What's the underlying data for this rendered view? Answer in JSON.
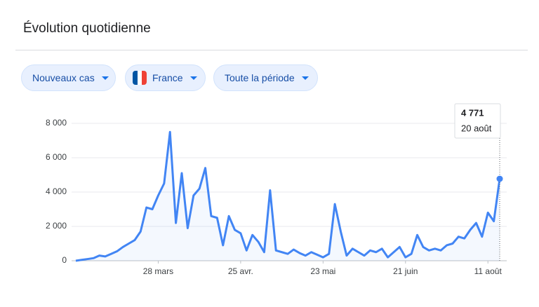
{
  "header": {
    "title": "Évolution quotidienne"
  },
  "controls": [
    "Nouveaux cas",
    "France",
    "Toute la période"
  ],
  "chart_data": {
    "type": "line",
    "categories": [
      null,
      null,
      null,
      null,
      null,
      null,
      null,
      null,
      null,
      null,
      null,
      null,
      null,
      null,
      "28 mars",
      null,
      null,
      null,
      null,
      null,
      null,
      null,
      null,
      null,
      null,
      null,
      null,
      null,
      "25 avr.",
      null,
      null,
      null,
      null,
      null,
      null,
      null,
      null,
      null,
      null,
      null,
      null,
      null,
      "23 mai",
      null,
      null,
      null,
      null,
      null,
      null,
      null,
      null,
      null,
      null,
      null,
      null,
      null,
      "21 juin",
      null,
      null,
      null,
      null,
      null,
      null,
      null,
      null,
      null,
      null,
      null,
      null,
      null,
      "11 août",
      null,
      null
    ],
    "series": [
      {
        "name": "Nouveaux cas",
        "color": "#4285f4",
        "values": [
          0,
          50,
          100,
          150,
          300,
          250,
          400,
          550,
          800,
          1000,
          1200,
          1700,
          3100,
          3000,
          3800,
          4500,
          7500,
          2200,
          5100,
          1900,
          3800,
          4200,
          5400,
          2600,
          2500,
          900,
          2600,
          1800,
          1600,
          600,
          1500,
          1100,
          500,
          4100,
          600,
          500,
          400,
          650,
          450,
          300,
          500,
          350,
          200,
          400,
          3300,
          1700,
          300,
          700,
          500,
          300,
          600,
          500,
          700,
          200,
          500,
          800,
          200,
          400,
          1500,
          800,
          600,
          700,
          600,
          900,
          1000,
          1400,
          1300,
          1800,
          2200,
          1400,
          2800,
          2300,
          4771
        ]
      }
    ],
    "ylim": [
      0,
      8000
    ],
    "yticks": [
      0,
      {
        "value": 2000,
        "label": "2 000"
      },
      {
        "value": 4000,
        "label": "4 000"
      },
      {
        "value": 6000,
        "label": "6 000"
      },
      {
        "value": 8000,
        "label": "8 000"
      }
    ],
    "grid": true,
    "tooltip": {
      "value": "4 771",
      "date": "20 août"
    }
  }
}
